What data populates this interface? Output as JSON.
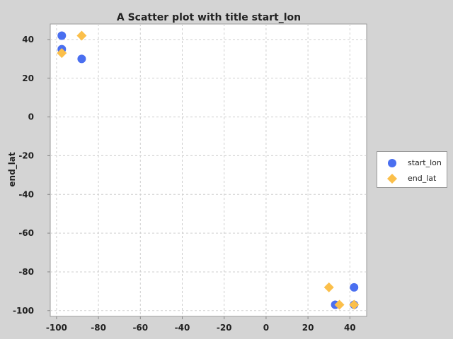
{
  "chart_data": {
    "type": "scatter",
    "title": "A Scatter plot with title start_lon",
    "xlabel": "",
    "ylabel": "end_lat",
    "xlim": [
      -103,
      48
    ],
    "ylim": [
      -103,
      48
    ],
    "xticks": [
      -100,
      -80,
      -60,
      -40,
      -20,
      0,
      20,
      40
    ],
    "yticks": [
      40,
      20,
      0,
      -20,
      -40,
      -60,
      -80,
      -100
    ],
    "grid": true,
    "legend_position": "right",
    "series": [
      {
        "name": "start_lon",
        "marker": "circle",
        "color": "#4a6ff0",
        "points": [
          [
            -97.5,
            42
          ],
          [
            -97.5,
            35
          ],
          [
            -88,
            30
          ],
          [
            33,
            -97
          ],
          [
            42,
            -88
          ],
          [
            42,
            -97
          ]
        ]
      },
      {
        "name": "end_lat",
        "marker": "diamond",
        "color": "#fbbf4a",
        "points": [
          [
            -88,
            42
          ],
          [
            -97.5,
            33
          ],
          [
            30,
            -88
          ],
          [
            35,
            -97
          ],
          [
            42,
            -97
          ]
        ]
      }
    ]
  },
  "legend": {
    "items": [
      {
        "label": "start_lon",
        "icon": "circle",
        "color": "#4a6ff0"
      },
      {
        "label": "end_lat",
        "icon": "diamond",
        "color": "#fbbf4a"
      }
    ]
  }
}
